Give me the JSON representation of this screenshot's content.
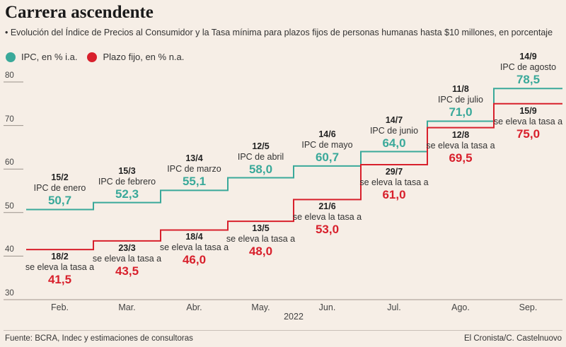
{
  "header": {
    "title": "Carrera ascendente",
    "subtitle": "• Evolución del Índice de Precios al Consumidor y la Tasa mínima para plazos fijos de personas humanas hasta $10 millones, en porcentaje"
  },
  "footer": {
    "source": "Fuente: BCRA, Indec y estimaciones de consultoras",
    "credit": "El Cronista/C. Castelnuovo"
  },
  "chart_data": {
    "type": "line",
    "step": true,
    "categories": [
      "Feb.",
      "Mar.",
      "Abr.",
      "May.",
      "Jun.",
      "Jul.",
      "Ago.",
      "Sep."
    ],
    "xlabel": "2022",
    "ylim": [
      30,
      80
    ],
    "yticks": [
      "30",
      "40",
      "50",
      "60",
      "70",
      "80"
    ],
    "grid": false,
    "legend_position": "top-left",
    "series": [
      {
        "name": "IPC, en % i.a.",
        "color": "#3aa99a",
        "values": [
          50.7,
          52.3,
          55.1,
          58.0,
          60.7,
          64.0,
          71.0,
          78.5
        ],
        "annotations": [
          {
            "date": "15/2",
            "text": "IPC de enero",
            "value": "50,7"
          },
          {
            "date": "15/3",
            "text": "IPC de febrero",
            "value": "52,3"
          },
          {
            "date": "13/4",
            "text": "IPC de marzo",
            "value": "55,1"
          },
          {
            "date": "12/5",
            "text": "IPC de abril",
            "value": "58,0"
          },
          {
            "date": "14/6",
            "text": "IPC de mayo",
            "value": "60,7"
          },
          {
            "date": "14/7",
            "text": "IPC de junio",
            "value": "64,0"
          },
          {
            "date": "11/8",
            "text": "IPC de julio",
            "value": "71,0"
          },
          {
            "date": "14/9",
            "text": "IPC de agosto",
            "value": "78,5"
          }
        ]
      },
      {
        "name": "Plazo fijo, en % n.a.",
        "color": "#d8202c",
        "values": [
          41.5,
          43.5,
          46.0,
          48.0,
          53.0,
          61.0,
          69.5,
          75.0
        ],
        "annotations": [
          {
            "date": "18/2",
            "text": "se eleva la tasa a",
            "value": "41,5"
          },
          {
            "date": "23/3",
            "text": "se eleva la tasa a",
            "value": "43,5"
          },
          {
            "date": "18/4",
            "text": "se eleva la tasa a",
            "value": "46,0"
          },
          {
            "date": "13/5",
            "text": "se eleva la tasa a",
            "value": "48,0"
          },
          {
            "date": "21/6",
            "text": "se eleva la tasa a",
            "value": "53,0"
          },
          {
            "date": "29/7",
            "text": "se eleva la tasa a",
            "value": "61,0"
          },
          {
            "date": "12/8",
            "text": "se eleva la tasa a",
            "value": "69,5"
          },
          {
            "date": "15/9",
            "text": "se eleva la tasa a",
            "value": "75,0"
          }
        ]
      }
    ]
  }
}
